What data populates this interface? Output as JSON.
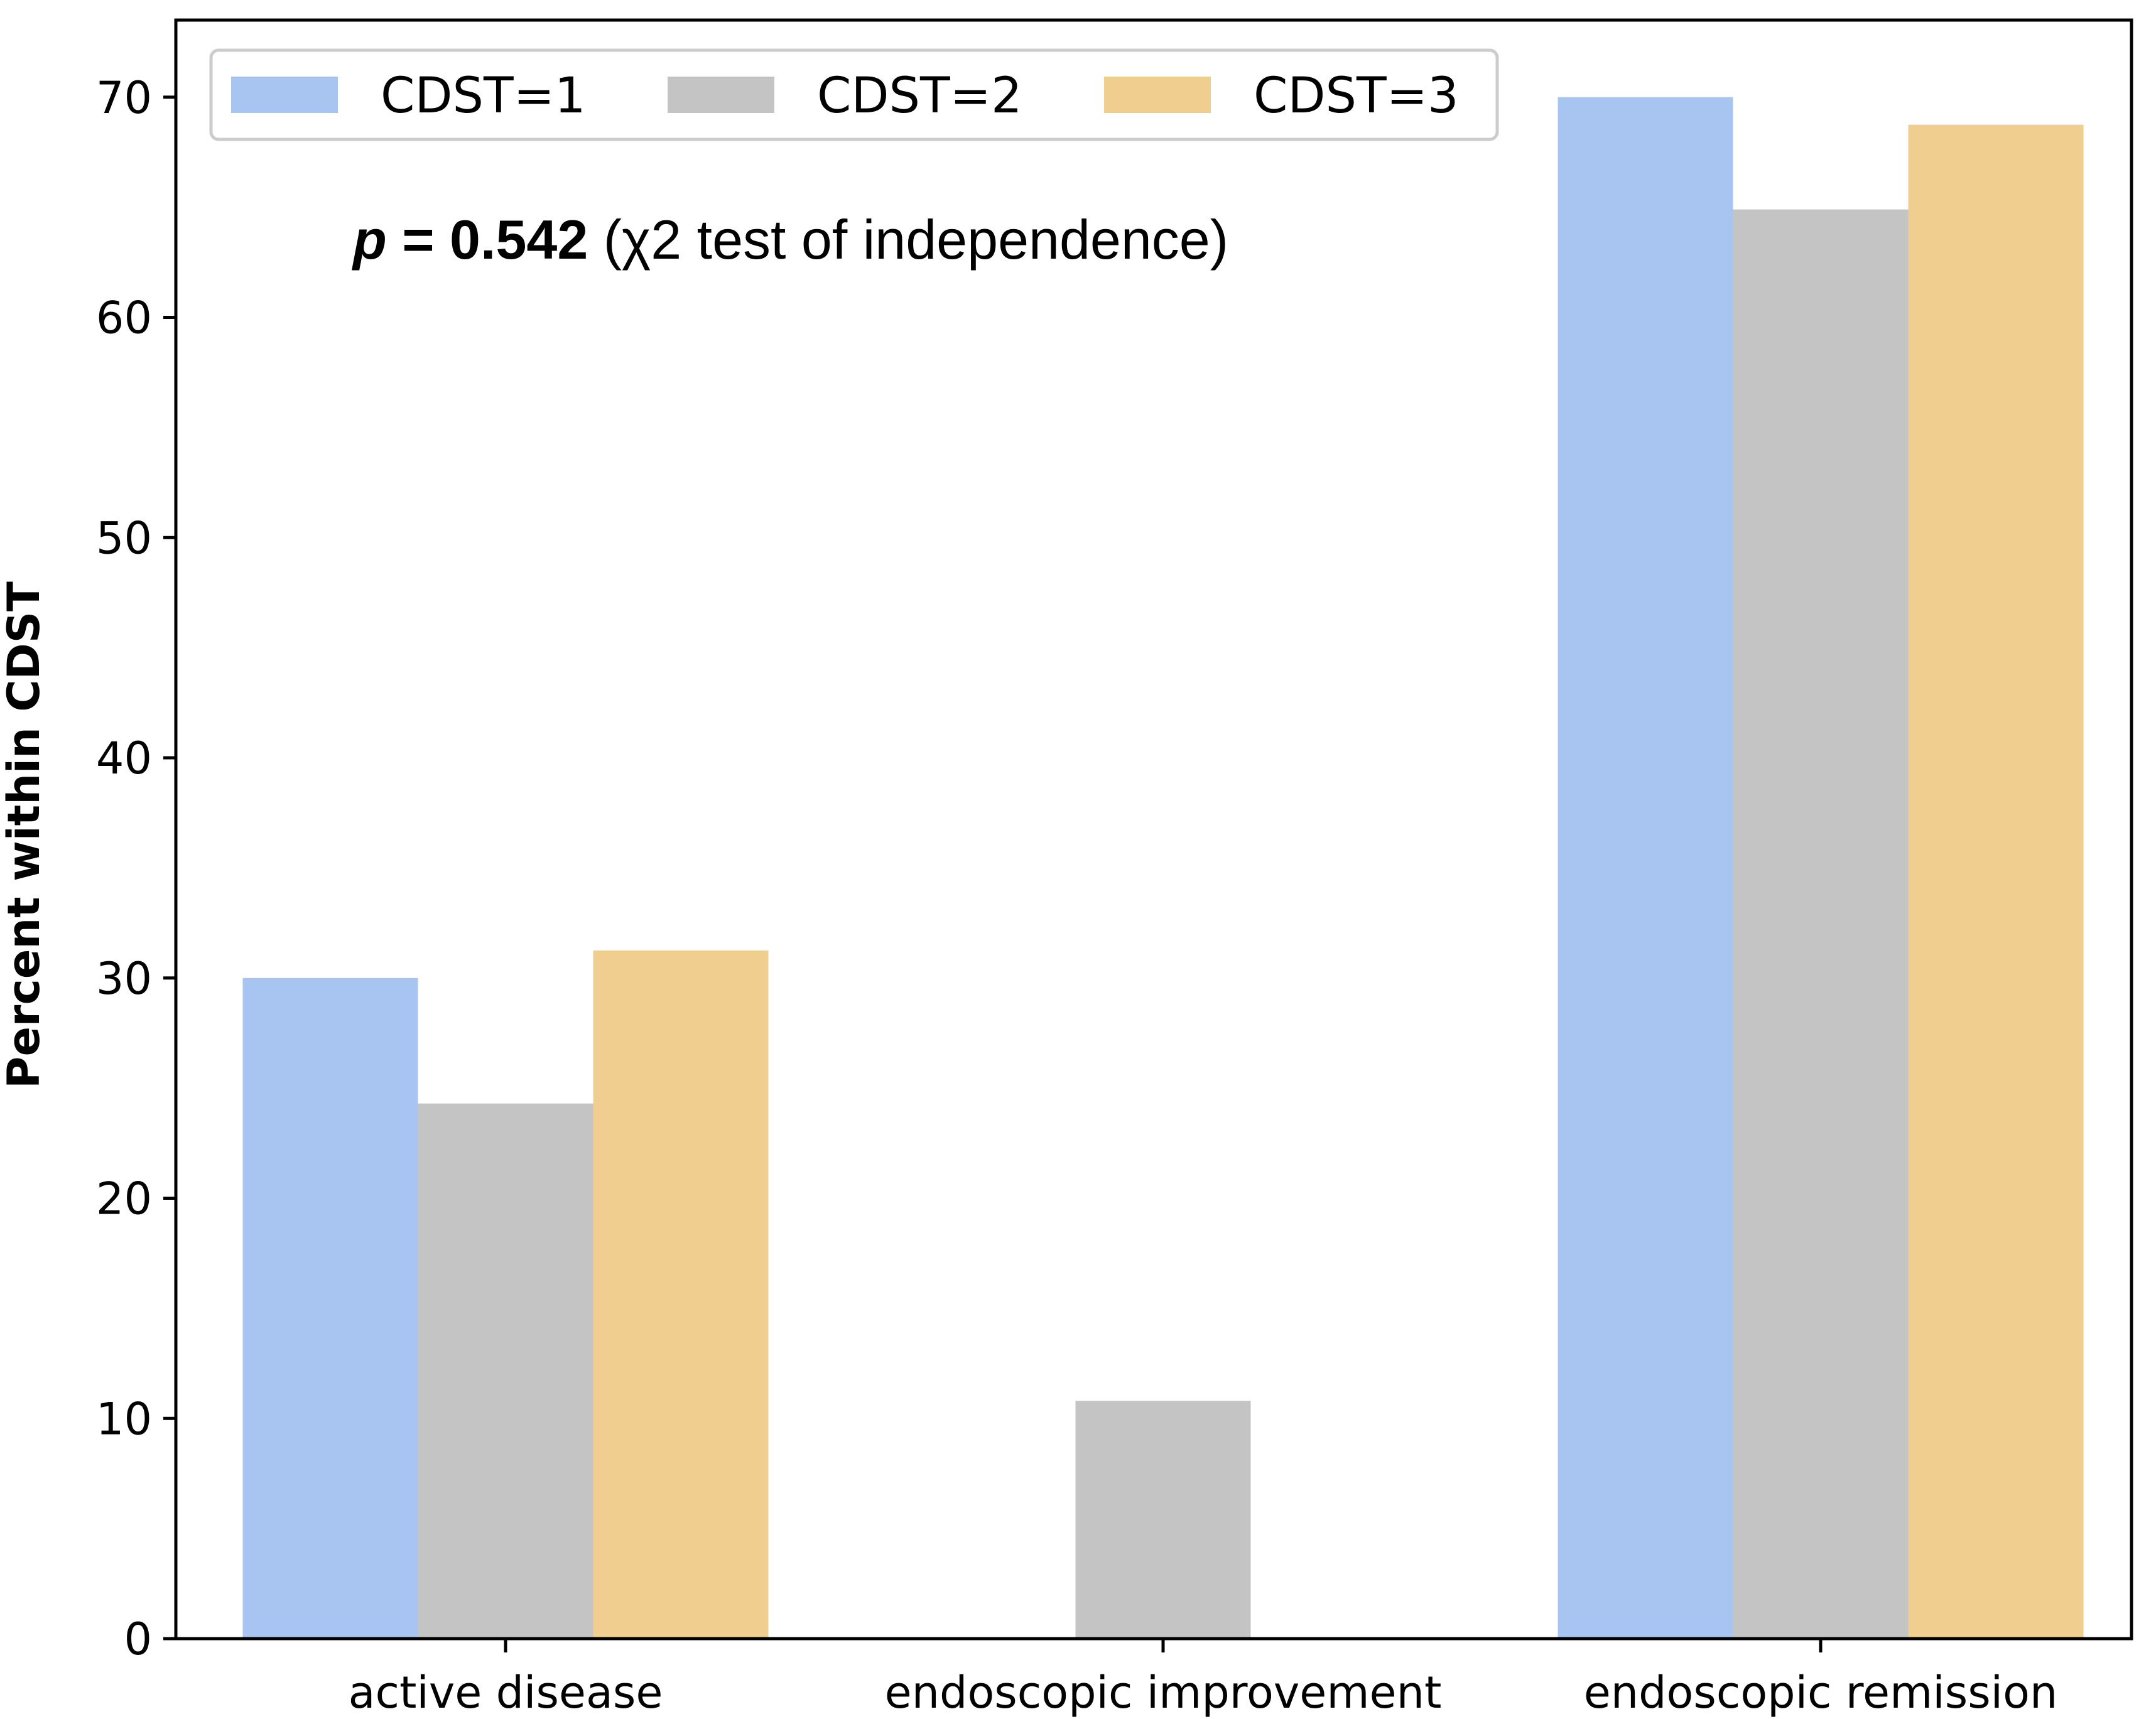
{
  "chart_data": {
    "type": "bar",
    "categories": [
      "active disease",
      "endoscopic improvement",
      "endoscopic remission"
    ],
    "series": [
      {
        "name": "CDST=1",
        "values": [
          30.0,
          0.0,
          70.0
        ]
      },
      {
        "name": "CDST=2",
        "values": [
          24.3,
          10.8,
          64.9
        ]
      },
      {
        "name": "CDST=3",
        "values": [
          31.25,
          0.0,
          68.75
        ]
      }
    ],
    "title": "",
    "xlabel": "",
    "ylabel": "Percent within CDST",
    "ylim": [
      0,
      73.5
    ],
    "yticks": [
      0,
      10,
      20,
      30,
      40,
      50,
      60,
      70
    ],
    "grid": false,
    "legend_position": "top-left",
    "colors": [
      "#a7c5f0",
      "#c4c4c4",
      "#f0ce90"
    ],
    "annotation": {
      "p_symbol": "p",
      "p_value_text": " = 0.542",
      "test_text": " (χ2 test of independence)"
    }
  }
}
